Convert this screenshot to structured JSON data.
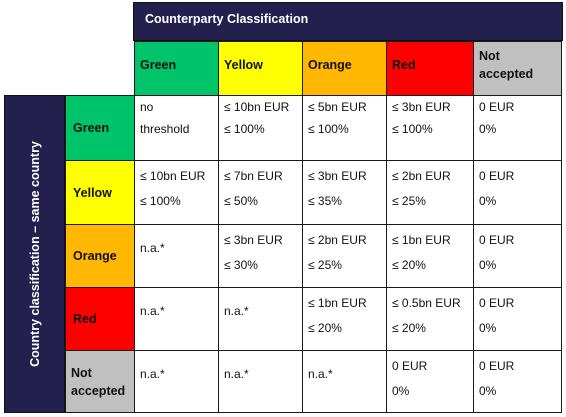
{
  "header": {
    "top": "Counterparty Classification",
    "side": "Country classification – same country"
  },
  "colors": {
    "navy": "#23204d",
    "green": "#00c46a",
    "yellow": "#ffff00",
    "orange": "#ffb700",
    "red": "#ff0000",
    "grey": "#c0c0c0"
  },
  "columns": [
    {
      "label": "Green"
    },
    {
      "label": "Yellow"
    },
    {
      "label": "Orange"
    },
    {
      "label": "Red"
    },
    {
      "label_line1": "Not",
      "label_line2": "accepted"
    }
  ],
  "rows": [
    {
      "label": "Green",
      "cells": [
        {
          "l1": "no",
          "l2": "threshold"
        },
        {
          "l1": "≤ 10bn EUR",
          "l2": "≤ 100%"
        },
        {
          "l1": "≤ 5bn EUR",
          "l2": "≤ 100%"
        },
        {
          "l1": "≤ 3bn EUR",
          "l2": "≤ 100%"
        },
        {
          "l1": "0 EUR",
          "l2": "0%"
        }
      ]
    },
    {
      "label": "Yellow",
      "cells": [
        {
          "l1": "≤ 10bn EUR",
          "l2": "≤ 100%"
        },
        {
          "l1": "≤ 7bn EUR",
          "l2": "≤ 50%"
        },
        {
          "l1": "≤ 3bn EUR",
          "l2": "≤ 35%"
        },
        {
          "l1": "≤ 2bn EUR",
          "l2": "≤ 25%"
        },
        {
          "l1": "0 EUR",
          "l2": "0%"
        }
      ]
    },
    {
      "label": "Orange",
      "cells": [
        {
          "l1": "n.a.*"
        },
        {
          "l1": "≤ 3bn EUR",
          "l2": "≤ 30%"
        },
        {
          "l1": "≤ 2bn EUR",
          "l2": "≤ 25%"
        },
        {
          "l1": "≤ 1bn EUR",
          "l2": "≤ 20%"
        },
        {
          "l1": "0 EUR",
          "l2": "0%"
        }
      ]
    },
    {
      "label": "Red",
      "cells": [
        {
          "l1": "n.a.*"
        },
        {
          "l1": "n.a.*"
        },
        {
          "l1": "≤ 1bn EUR",
          "l2": "≤ 20%"
        },
        {
          "l1": "≤ 0.5bn EUR",
          "l2": "≤ 20%"
        },
        {
          "l1": "0 EUR",
          "l2": "0%"
        }
      ]
    },
    {
      "label_line1": "Not",
      "label_line2": "accepted",
      "cells": [
        {
          "l1": "n.a.*"
        },
        {
          "l1": "n.a.*"
        },
        {
          "l1": "n.a.*"
        },
        {
          "l1": "0 EUR",
          "l2": "0%"
        },
        {
          "l1": "0 EUR",
          "l2": "0%"
        }
      ]
    }
  ]
}
